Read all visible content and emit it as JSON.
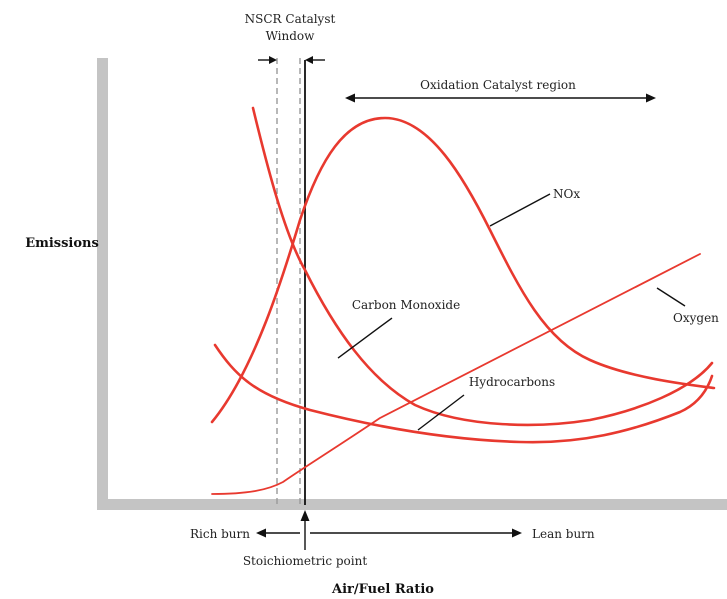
{
  "diagram": {
    "y_axis_label": "Emissions",
    "x_axis_label": "Air/Fuel Ratio",
    "nscr_window_label_line1": "NSCR Catalyst",
    "nscr_window_label_line2": "Window",
    "oxidation_region_label": "Oxidation Catalyst region",
    "rich_burn_label": "Rich burn",
    "lean_burn_label": "Lean burn",
    "stoichiometric_label": "Stoichiometric point",
    "curves": {
      "nox": "NOx",
      "carbon_monoxide": "Carbon Monoxide",
      "hydrocarbons": "Hydrocarbons",
      "oxygen": "Oxygen"
    },
    "colors": {
      "curve": "#e8392f",
      "axis": "#c4c4c4",
      "window_dashed": "#9a9a9a",
      "stoich_line": "#111111",
      "text": "#222222"
    }
  }
}
